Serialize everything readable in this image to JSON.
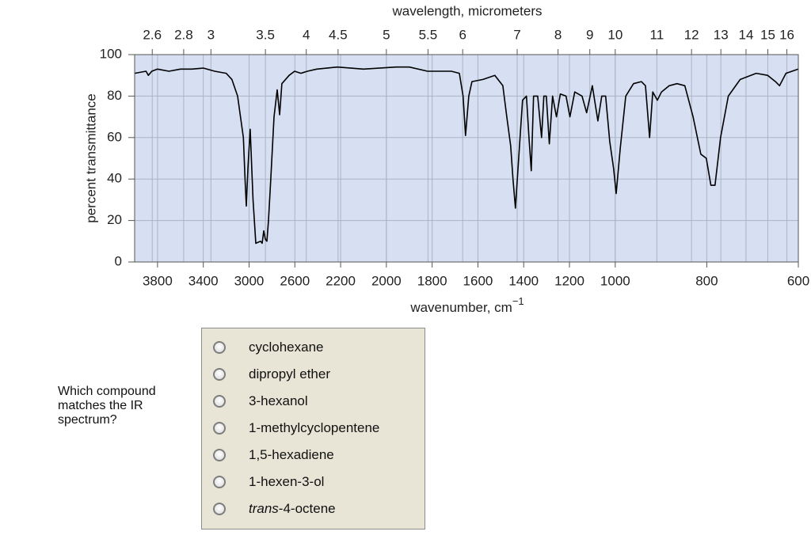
{
  "chart_data": {
    "type": "line",
    "x2label": "wavelength, micrometers",
    "x2ticks": [
      2.6,
      2.8,
      3,
      3.5,
      4,
      4.5,
      5,
      5.5,
      6,
      7,
      8,
      9,
      10,
      11,
      12,
      13,
      14,
      15,
      16
    ],
    "ylabel": "percent transmittance",
    "xlabel": "wavenumber, cm",
    "xlabel_sup": "−1",
    "xlim": [
      4000,
      600
    ],
    "x_scale_breaks": [
      2200,
      1000
    ],
    "xticks": [
      3800,
      3400,
      3000,
      2600,
      2200,
      2000,
      1800,
      1600,
      1400,
      1200,
      1000,
      800,
      600
    ],
    "ylim": [
      0,
      100
    ],
    "yticks": [
      0,
      20,
      40,
      60,
      80,
      100
    ],
    "grid": true,
    "color": "#000000",
    "x": [
      4000,
      3900,
      3880,
      3850,
      3800,
      3700,
      3600,
      3500,
      3400,
      3300,
      3200,
      3150,
      3100,
      3050,
      3035,
      3024,
      3010,
      2990,
      2965,
      2941,
      2900,
      2886,
      2872,
      2858,
      2844,
      2830,
      2810,
      2782,
      2754,
      2733,
      2713,
      2650,
      2602,
      2547,
      2490,
      2408,
      2228,
      2100,
      1958,
      1900,
      1820,
      1716,
      1681,
      1665,
      1654,
      1640,
      1626,
      1578,
      1526,
      1491,
      1474,
      1457,
      1447,
      1436,
      1422,
      1405,
      1388,
      1377,
      1367,
      1357,
      1339,
      1322,
      1312,
      1301,
      1288,
      1274,
      1257,
      1240,
      1215,
      1198,
      1177,
      1145,
      1125,
      1100,
      1076,
      1059,
      1042,
      1024,
      1007,
      998,
      989,
      977,
      960,
      943,
      934,
      925,
      918,
      908,
      899,
      882,
      865,
      848,
      830,
      813,
      801,
      791,
      782,
      770,
      753,
      727,
      692,
      667,
      650,
      641,
      627,
      600
    ],
    "values": [
      91,
      92,
      90,
      92,
      93,
      92,
      93,
      93,
      93.5,
      92,
      91,
      88,
      80,
      60,
      40,
      27,
      45,
      64,
      30,
      9,
      10,
      9,
      15,
      11,
      10,
      20,
      40,
      70,
      83,
      71,
      86,
      90,
      92,
      91,
      92,
      93,
      94,
      93,
      94,
      94,
      92,
      92,
      91,
      80,
      61,
      80,
      87,
      88,
      90,
      85,
      70,
      56,
      40,
      26,
      50,
      78,
      80,
      60,
      44,
      80,
      80,
      60,
      80,
      80,
      57,
      80,
      70,
      81,
      80,
      70,
      82,
      80,
      72,
      85,
      68,
      80,
      80,
      58,
      45,
      33,
      55,
      80,
      86,
      87,
      85,
      60,
      82,
      78,
      82,
      85,
      86,
      85,
      70,
      52,
      50,
      37,
      37,
      60,
      80,
      88,
      91,
      90,
      87,
      85,
      91,
      93
    ]
  },
  "question": "Which compound matches the IR spectrum?",
  "options": [
    "cyclohexane",
    "dipropyl ether",
    "3-hexanol",
    "1-methylcyclopentene",
    "1,5-hexadiene",
    "1-hexen-3-ol",
    {
      "italic": "trans",
      "rest": "-4-octene"
    }
  ]
}
